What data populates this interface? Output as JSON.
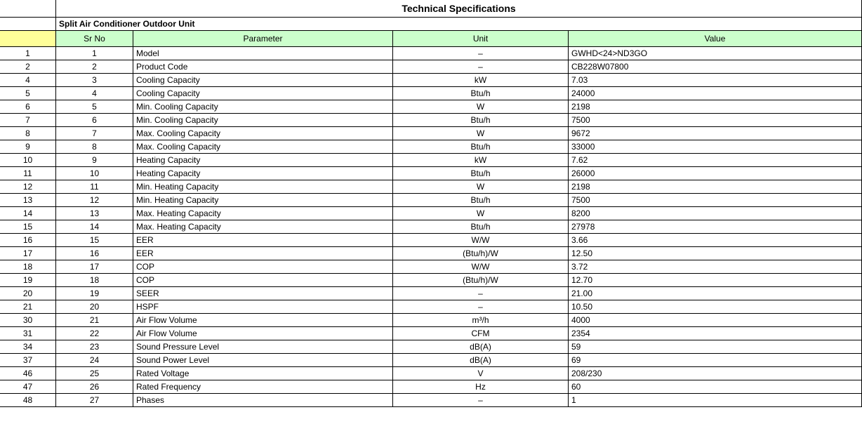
{
  "title": "Technical Specifications",
  "subtitle": "Split Air Conditioner  Outdoor Unit",
  "colors": {
    "header_bg": "#ccffcc",
    "corner_bg": "#ffff99",
    "border": "#000000",
    "text": "#000000",
    "background": "#ffffff"
  },
  "columns": {
    "rownum_width": 80,
    "sr_width": 110,
    "param_width": 370,
    "unit_width": 250
  },
  "headers": {
    "sr": "Sr No",
    "param": "Parameter",
    "unit": "Unit",
    "value": "Value"
  },
  "rows": [
    {
      "rownum": "1",
      "sr": "1",
      "param": "Model",
      "unit": "–",
      "value": "GWHD<24>ND3GO"
    },
    {
      "rownum": "2",
      "sr": "2",
      "param": "Product Code",
      "unit": "–",
      "value": "CB228W07800"
    },
    {
      "rownum": "4",
      "sr": "3",
      "param": "Cooling Capacity",
      "unit": "kW",
      "value": "7.03"
    },
    {
      "rownum": "5",
      "sr": "4",
      "param": "Cooling Capacity",
      "unit": "Btu/h",
      "value": "24000"
    },
    {
      "rownum": "6",
      "sr": "5",
      "param": "Min. Cooling Capacity",
      "unit": "W",
      "value": "2198"
    },
    {
      "rownum": "7",
      "sr": "6",
      "param": "Min. Cooling Capacity",
      "unit": "Btu/h",
      "value": "7500"
    },
    {
      "rownum": "8",
      "sr": "7",
      "param": "Max. Cooling Capacity",
      "unit": "W",
      "value": "9672"
    },
    {
      "rownum": "9",
      "sr": "8",
      "param": "Max. Cooling Capacity",
      "unit": "Btu/h",
      "value": "33000"
    },
    {
      "rownum": "10",
      "sr": "9",
      "param": "Heating Capacity",
      "unit": "kW",
      "value": "7.62"
    },
    {
      "rownum": "11",
      "sr": "10",
      "param": "Heating Capacity",
      "unit": "Btu/h",
      "value": "26000"
    },
    {
      "rownum": "12",
      "sr": "11",
      "param": "Min. Heating Capacity",
      "unit": "W",
      "value": "2198"
    },
    {
      "rownum": "13",
      "sr": "12",
      "param": "Min. Heating Capacity",
      "unit": "Btu/h",
      "value": "7500"
    },
    {
      "rownum": "14",
      "sr": "13",
      "param": "Max. Heating Capacity",
      "unit": "W",
      "value": "8200"
    },
    {
      "rownum": "15",
      "sr": "14",
      "param": "Max. Heating Capacity",
      "unit": "Btu/h",
      "value": "27978"
    },
    {
      "rownum": "16",
      "sr": "15",
      "param": "EER",
      "unit": "W/W",
      "value": "3.66"
    },
    {
      "rownum": "17",
      "sr": "16",
      "param": "EER",
      "unit": "(Btu/h)/W",
      "value": "12.50"
    },
    {
      "rownum": "18",
      "sr": "17",
      "param": "COP",
      "unit": "W/W",
      "value": "3.72"
    },
    {
      "rownum": "19",
      "sr": "18",
      "param": "COP",
      "unit": "(Btu/h)/W",
      "value": "12.70"
    },
    {
      "rownum": "20",
      "sr": "19",
      "param": "SEER",
      "unit": "–",
      "value": "21.00"
    },
    {
      "rownum": "21",
      "sr": "20",
      "param": "HSPF",
      "unit": "–",
      "value": "10.50"
    },
    {
      "rownum": "30",
      "sr": "21",
      "param": "Air Flow Volume",
      "unit": "m³/h",
      "value": "4000"
    },
    {
      "rownum": "31",
      "sr": "22",
      "param": "Air Flow Volume",
      "unit": "CFM",
      "value": "2354"
    },
    {
      "rownum": "34",
      "sr": "23",
      "param": "Sound Pressure Level",
      "unit": "dB(A)",
      "value": "59"
    },
    {
      "rownum": "37",
      "sr": "24",
      "param": "Sound Power Level",
      "unit": "dB(A)",
      "value": "69"
    },
    {
      "rownum": "46",
      "sr": "25",
      "param": "Rated Voltage",
      "unit": "V",
      "value": "208/230"
    },
    {
      "rownum": "47",
      "sr": "26",
      "param": "Rated Frequency",
      "unit": "Hz",
      "value": "60"
    },
    {
      "rownum": "48",
      "sr": "27",
      "param": "Phases",
      "unit": "–",
      "value": "1"
    }
  ]
}
